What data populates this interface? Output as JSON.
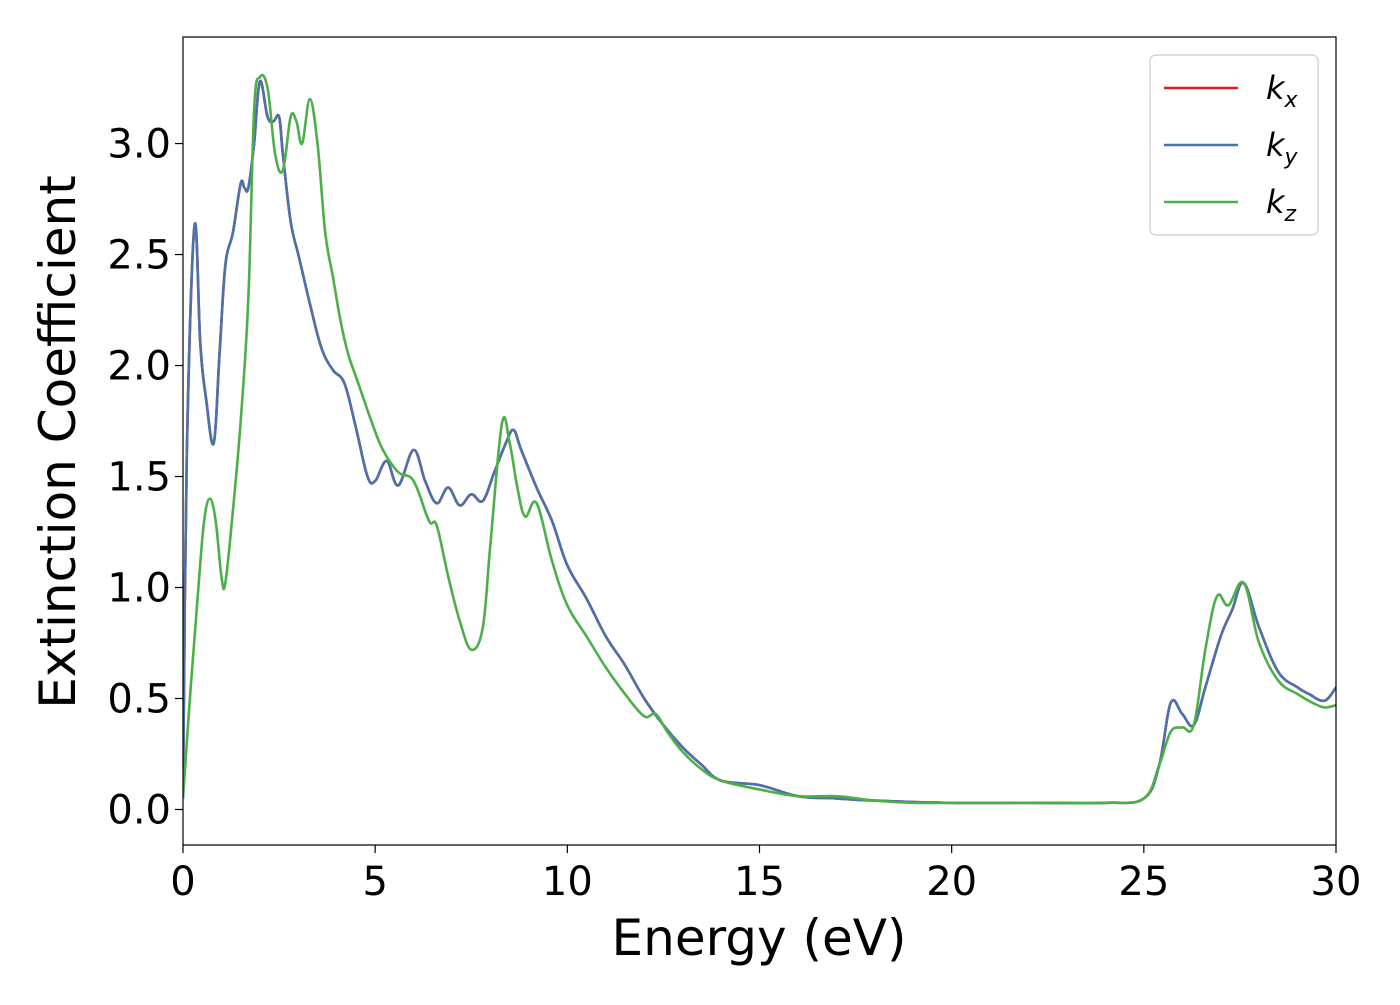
{
  "chart_data": {
    "type": "line",
    "xlabel": "Energy (eV)",
    "ylabel": "Extinction Coefficient",
    "xlim": [
      0,
      30
    ],
    "ylim": [
      -0.16,
      3.48
    ],
    "xticks": [
      0,
      5,
      10,
      15,
      20,
      25,
      30
    ],
    "xtick_labels": [
      "0",
      "5",
      "10",
      "15",
      "20",
      "25",
      "30"
    ],
    "yticks": [
      0.0,
      0.5,
      1.0,
      1.5,
      2.0,
      2.5,
      3.0
    ],
    "ytick_labels": [
      "0.0",
      "0.5",
      "1.0",
      "1.5",
      "2.0",
      "2.5",
      "3.0"
    ],
    "grid": false,
    "legend_position": "top-right",
    "series": [
      {
        "name": "k",
        "subscript": "x",
        "color": "#e41a1c",
        "x": [
          0,
          0.1,
          0.3,
          0.45,
          0.6,
          0.8,
          0.95,
          1.1,
          1.3,
          1.5,
          1.6,
          1.7,
          1.85,
          2.0,
          2.2,
          2.35,
          2.5,
          2.6,
          2.8,
          3.0,
          3.3,
          3.6,
          3.9,
          4.2,
          4.5,
          4.8,
          5.0,
          5.3,
          5.6,
          6.0,
          6.3,
          6.6,
          6.9,
          7.2,
          7.5,
          7.8,
          8.1,
          8.4,
          8.6,
          8.8,
          9.2,
          9.6,
          10.0,
          10.5,
          11.0,
          11.5,
          12.0,
          12.5,
          13.0,
          13.5,
          14.0,
          15.0,
          16.0,
          17.0,
          18.0,
          20.0,
          22.0,
          24.0,
          25.0,
          25.4,
          25.7,
          26.0,
          26.3,
          26.6,
          27.0,
          27.3,
          27.6,
          28.0,
          28.5,
          29.0,
          29.3,
          29.7,
          30.0
        ],
        "y": [
          0.05,
          1.6,
          2.63,
          2.1,
          1.85,
          1.65,
          2.05,
          2.45,
          2.6,
          2.82,
          2.8,
          2.8,
          3.0,
          3.28,
          3.12,
          3.1,
          3.12,
          2.95,
          2.65,
          2.5,
          2.28,
          2.08,
          1.98,
          1.92,
          1.72,
          1.5,
          1.48,
          1.57,
          1.46,
          1.62,
          1.48,
          1.38,
          1.45,
          1.37,
          1.42,
          1.39,
          1.52,
          1.65,
          1.71,
          1.62,
          1.45,
          1.3,
          1.1,
          0.95,
          0.78,
          0.65,
          0.5,
          0.38,
          0.28,
          0.2,
          0.13,
          0.11,
          0.06,
          0.05,
          0.04,
          0.03,
          0.03,
          0.03,
          0.05,
          0.2,
          0.48,
          0.43,
          0.38,
          0.55,
          0.78,
          0.9,
          1.02,
          0.82,
          0.62,
          0.55,
          0.52,
          0.49,
          0.55
        ]
      },
      {
        "name": "k",
        "subscript": "y",
        "color": "#4a73ac",
        "x": [
          0,
          0.1,
          0.3,
          0.45,
          0.6,
          0.8,
          0.95,
          1.1,
          1.3,
          1.5,
          1.6,
          1.7,
          1.85,
          2.0,
          2.2,
          2.35,
          2.5,
          2.6,
          2.8,
          3.0,
          3.3,
          3.6,
          3.9,
          4.2,
          4.5,
          4.8,
          5.0,
          5.3,
          5.6,
          6.0,
          6.3,
          6.6,
          6.9,
          7.2,
          7.5,
          7.8,
          8.1,
          8.4,
          8.6,
          8.8,
          9.2,
          9.6,
          10.0,
          10.5,
          11.0,
          11.5,
          12.0,
          12.5,
          13.0,
          13.5,
          14.0,
          15.0,
          16.0,
          17.0,
          18.0,
          20.0,
          22.0,
          24.0,
          25.0,
          25.4,
          25.7,
          26.0,
          26.3,
          26.6,
          27.0,
          27.3,
          27.6,
          28.0,
          28.5,
          29.0,
          29.3,
          29.7,
          30.0
        ],
        "y": [
          0.05,
          1.6,
          2.63,
          2.1,
          1.85,
          1.65,
          2.05,
          2.45,
          2.6,
          2.82,
          2.8,
          2.8,
          3.0,
          3.28,
          3.12,
          3.1,
          3.12,
          2.95,
          2.65,
          2.5,
          2.28,
          2.08,
          1.98,
          1.92,
          1.72,
          1.5,
          1.48,
          1.57,
          1.46,
          1.62,
          1.48,
          1.38,
          1.45,
          1.37,
          1.42,
          1.39,
          1.52,
          1.65,
          1.71,
          1.62,
          1.45,
          1.3,
          1.1,
          0.95,
          0.78,
          0.65,
          0.5,
          0.38,
          0.28,
          0.2,
          0.13,
          0.11,
          0.06,
          0.05,
          0.04,
          0.03,
          0.03,
          0.03,
          0.05,
          0.2,
          0.48,
          0.43,
          0.38,
          0.55,
          0.78,
          0.9,
          1.02,
          0.82,
          0.62,
          0.55,
          0.52,
          0.49,
          0.55
        ]
      },
      {
        "name": "k",
        "subscript": "z",
        "color": "#4daf4a",
        "x": [
          0,
          0.2,
          0.4,
          0.55,
          0.7,
          0.85,
          1.0,
          1.1,
          1.3,
          1.5,
          1.7,
          1.85,
          2.0,
          2.2,
          2.4,
          2.6,
          2.8,
          2.95,
          3.1,
          3.3,
          3.5,
          3.7,
          3.9,
          4.1,
          4.3,
          4.5,
          4.7,
          4.9,
          5.2,
          5.6,
          6.0,
          6.4,
          6.6,
          6.9,
          7.2,
          7.5,
          7.8,
          8.0,
          8.3,
          8.5,
          8.7,
          8.9,
          9.2,
          9.6,
          10.0,
          10.5,
          11.0,
          11.5,
          12.0,
          12.3,
          12.6,
          13.0,
          13.5,
          14.0,
          15.0,
          16.0,
          17.0,
          18.0,
          19.0,
          20.0,
          22.0,
          24.0,
          25.0,
          25.4,
          25.7,
          26.0,
          26.3,
          26.6,
          26.9,
          27.2,
          27.6,
          28.0,
          28.5,
          29.0,
          29.4,
          29.7,
          30.0
        ],
        "y": [
          0.05,
          0.55,
          1.0,
          1.3,
          1.4,
          1.3,
          1.05,
          1.02,
          1.35,
          1.75,
          2.3,
          3.15,
          3.3,
          3.25,
          2.95,
          2.88,
          3.12,
          3.1,
          3.0,
          3.2,
          3.0,
          2.6,
          2.4,
          2.2,
          2.05,
          1.95,
          1.85,
          1.75,
          1.62,
          1.52,
          1.48,
          1.3,
          1.28,
          1.05,
          0.85,
          0.72,
          0.82,
          1.2,
          1.74,
          1.65,
          1.45,
          1.32,
          1.38,
          1.12,
          0.92,
          0.78,
          0.64,
          0.52,
          0.42,
          0.43,
          0.35,
          0.26,
          0.18,
          0.13,
          0.09,
          0.06,
          0.06,
          0.04,
          0.03,
          0.03,
          0.03,
          0.03,
          0.05,
          0.2,
          0.35,
          0.37,
          0.38,
          0.72,
          0.96,
          0.92,
          1.02,
          0.75,
          0.58,
          0.52,
          0.48,
          0.46,
          0.47
        ]
      }
    ]
  }
}
